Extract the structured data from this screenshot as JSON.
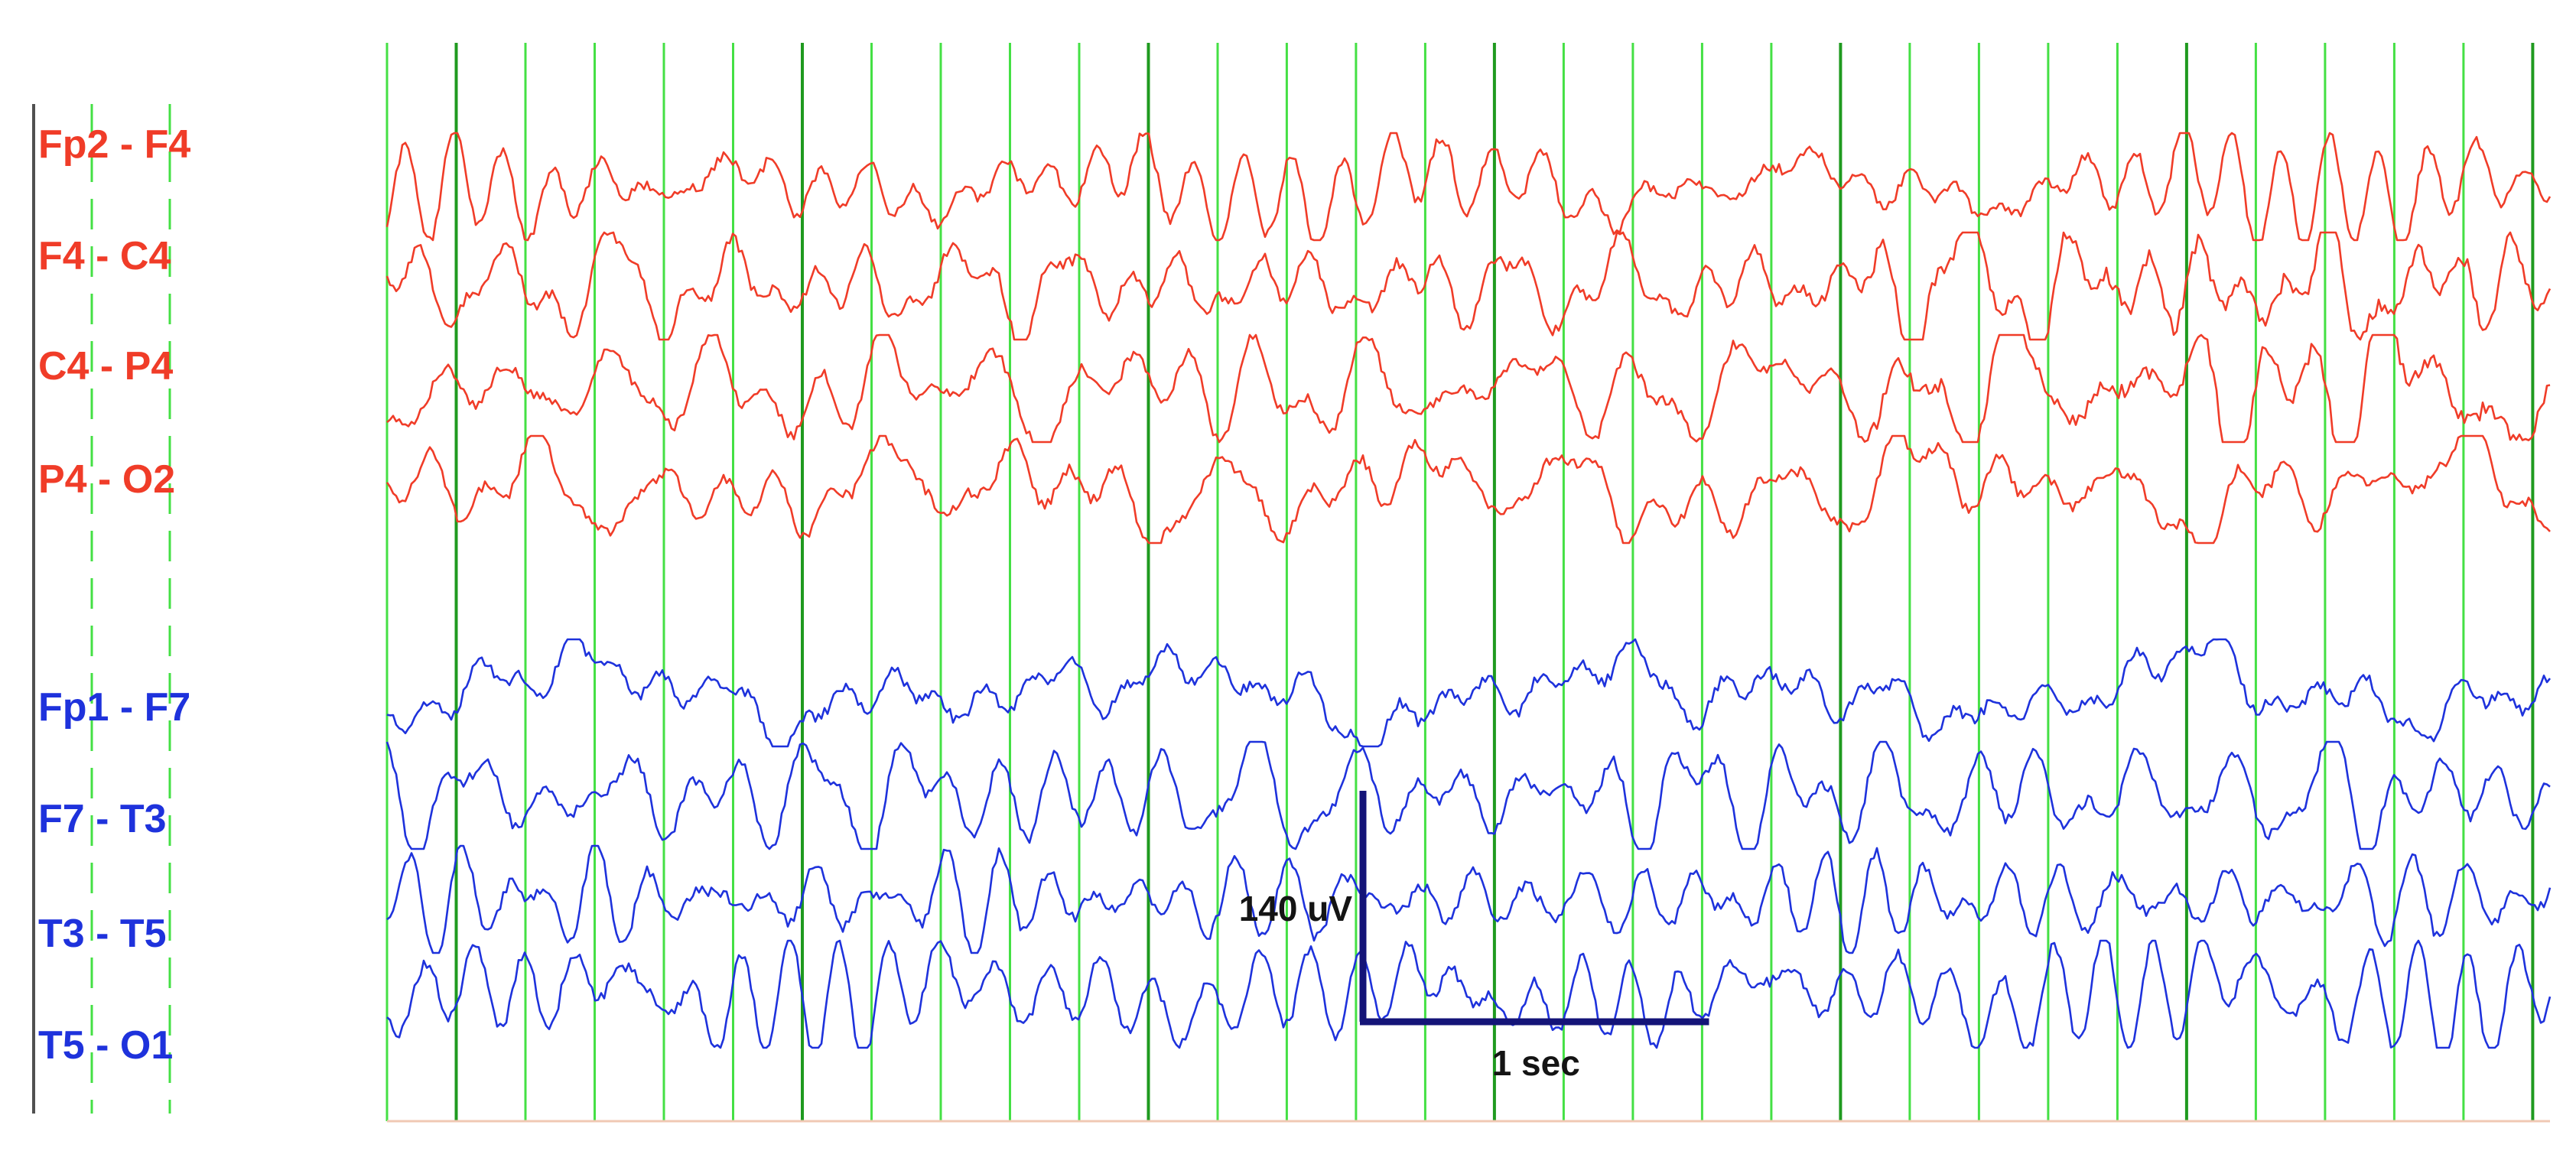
{
  "chart_data": {
    "type": "line",
    "title": "",
    "xlabel": "",
    "ylabel": "",
    "grid": true,
    "colors": {
      "right_hemisphere": "#f03c28",
      "left_hemisphere": "#1e32dc",
      "grid_minor": "#44e044",
      "grid_major": "#1f9a1f",
      "scale_bar": "#141478",
      "scale_text": "#141414"
    },
    "series": [
      {
        "label": "Fp2 - F4",
        "hemisphere": "right"
      },
      {
        "label": "F4 - C4",
        "hemisphere": "right"
      },
      {
        "label": "C4 - P4",
        "hemisphere": "right"
      },
      {
        "label": "P4 - O2",
        "hemisphere": "right"
      },
      {
        "label": "Fp1 - F7",
        "hemisphere": "left"
      },
      {
        "label": "F7 - T3",
        "hemisphere": "left"
      },
      {
        "label": "T3 - T5",
        "hemisphere": "left"
      },
      {
        "label": "T5 - O1",
        "hemisphere": "left"
      }
    ],
    "x_range_sec": [
      0,
      6.25
    ],
    "grid_minor_step_sec": 0.2,
    "grid_major_step_sec": 1.0,
    "scale_bar": {
      "voltage": 140,
      "voltage_label": "140 uV",
      "time": 1,
      "time_label": "1 sec"
    }
  }
}
